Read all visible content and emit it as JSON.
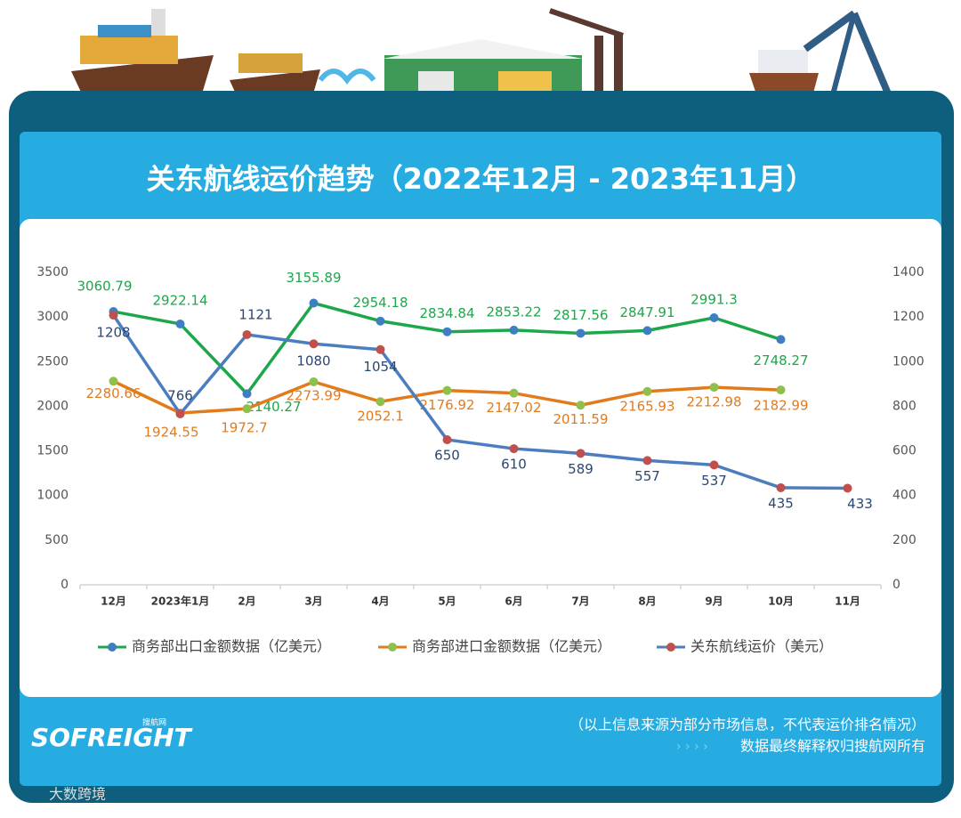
{
  "chart_data": {
    "type": "line",
    "title": "关东航线运价趋势（2022年12月 - 2023年11月）",
    "categories": [
      "12月",
      "2023年1月",
      "2月",
      "3月",
      "4月",
      "5月",
      "6月",
      "7月",
      "8月",
      "9月",
      "10月",
      "11月"
    ],
    "series": [
      {
        "name": "商务部出口金额数据（亿美元）",
        "color": "#1ea64b",
        "marker_color": "#3d7fc1",
        "label_color": "#1ea64b",
        "values": [
          3060.79,
          2922.14,
          2140.27,
          3155.89,
          2954.18,
          2834.84,
          2853.22,
          2817.56,
          2847.91,
          2991.3,
          2748.27,
          null
        ]
      },
      {
        "name": "商务部进口金额数据（亿美元）",
        "color": "#e27b1c",
        "marker_color": "#8fc04c",
        "label_color": "#e27b1c",
        "values": [
          2280.66,
          1924.55,
          1972.7,
          2273.99,
          2052.1,
          2176.92,
          2147.02,
          2011.59,
          2165.93,
          2212.98,
          2182.99,
          null
        ]
      },
      {
        "name": "关东航线运价（美元）",
        "color": "#4b7dbf",
        "marker_color": "#c0504d",
        "label_color": "#2b4670",
        "axis": "y2",
        "values": [
          1208,
          766,
          1121,
          1080,
          1054,
          650,
          610,
          589,
          557,
          537,
          435,
          433
        ]
      }
    ],
    "ylim": [
      0,
      3500
    ],
    "yticks": [
      0,
      500,
      1000,
      1500,
      2000,
      2500,
      3000,
      3500
    ],
    "y2lim": [
      0,
      1400
    ],
    "y2ticks": [
      0,
      200,
      400,
      600,
      800,
      1000,
      1200,
      1400
    ],
    "grid": false,
    "legend": "bottom"
  },
  "source_note": "（以上信息来源为部分市场信息，不代表运价排名情况）",
  "rights_note": "数据最终解释权归搜航网所有",
  "brand": "SOFREIGHT",
  "brand_sub": "搜航网",
  "watermark": "大数跨境"
}
